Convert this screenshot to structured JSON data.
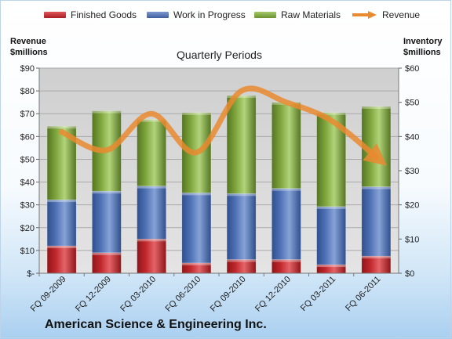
{
  "legend": {
    "finished": "Finished Goods",
    "wip": "Work in Progress",
    "raw": "Raw Materials",
    "revenue": "Revenue"
  },
  "left_axis_title": [
    "Revenue",
    "$millions"
  ],
  "right_axis_title": [
    "Inventory",
    "$millions"
  ],
  "subtitle": "Quarterly Periods",
  "company": "American Science & Engineering Inc.",
  "colors": {
    "finished": "#c0282d",
    "wip": "#4f71b5",
    "raw": "#7ea53c",
    "revenue": "#ea8a2f",
    "plot_bg": "#d4d4d4",
    "grid": "#a9a9a9"
  },
  "chart_data": {
    "type": "bar",
    "stacked": true,
    "categories": [
      "FQ 09-2009",
      "FQ 12-2009",
      "FQ 03-2010",
      "FQ 06-2010",
      "FQ 09-2010",
      "FQ 12-2010",
      "FQ 03-2011",
      "FQ 06-2011"
    ],
    "series": [
      {
        "name": "Finished Goods",
        "axis": "right",
        "values": [
          8.0,
          6.0,
          10.0,
          3.0,
          4.0,
          4.0,
          2.5,
          5.0
        ]
      },
      {
        "name": "Work in Progress",
        "axis": "right",
        "values": [
          13.5,
          18.0,
          15.5,
          20.5,
          19.3,
          20.8,
          17.0,
          20.3
        ]
      },
      {
        "name": "Raw Materials",
        "axis": "right",
        "values": [
          21.5,
          23.5,
          19.5,
          23.5,
          28.7,
          25.2,
          27.5,
          23.5
        ]
      },
      {
        "name": "Revenue",
        "axis": "left",
        "type": "line",
        "values": [
          62,
          54,
          70,
          53,
          80,
          75,
          67,
          51
        ]
      }
    ],
    "left_axis": {
      "min": 0,
      "max": 90,
      "step": 10,
      "ticks": [
        "$-",
        "$10",
        "$20",
        "$30",
        "$40",
        "$50",
        "$60",
        "$70",
        "$80",
        "$90"
      ]
    },
    "right_axis": {
      "min": 0,
      "max": 60,
      "step": 10,
      "ticks": [
        "$0",
        "$10",
        "$20",
        "$30",
        "$40",
        "$50",
        "$60"
      ]
    },
    "grid": true,
    "legend_position": "top"
  }
}
